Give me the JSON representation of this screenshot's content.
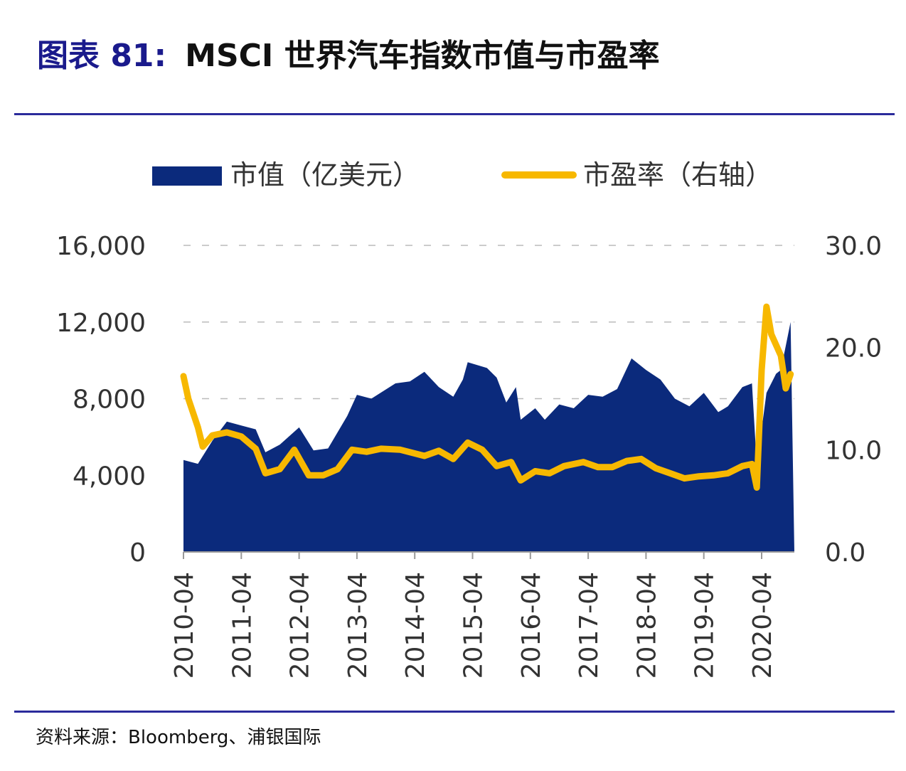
{
  "title": {
    "lead": "图表 81:",
    "text": "MSCI 世界汽车指数市值与市盈率"
  },
  "source": "资料来源：Bloomberg、浦银国际",
  "colors": {
    "market_cap": "#0b2a7c",
    "pe": "#f7b800",
    "rule": "#2b2b9b"
  },
  "chart_data": {
    "type": "area+line",
    "title": "",
    "legend_placement": "top",
    "grid": true,
    "x_tick_labels": [
      "2010-04",
      "2011-04",
      "2012-04",
      "2013-04",
      "2014-04",
      "2015-04",
      "2016-04",
      "2017-04",
      "2018-04",
      "2019-04",
      "2020-04"
    ],
    "y_left": {
      "ticks": [
        "0",
        "4,000",
        "8,000",
        "12,000",
        "16,000"
      ],
      "ylim": [
        0,
        16000
      ]
    },
    "y_right": {
      "ticks": [
        "0.0",
        "10.0",
        "20.0",
        "30.0"
      ],
      "ylim": [
        0,
        30
      ]
    },
    "series": [
      {
        "name": "市值（亿美元）",
        "type": "area",
        "axis": "left",
        "x": [
          "2010-04",
          "2010-07",
          "2010-10",
          "2011-01",
          "2011-04",
          "2011-07",
          "2011-09",
          "2011-12",
          "2012-04",
          "2012-07",
          "2012-10",
          "2013-02",
          "2013-04",
          "2013-07",
          "2013-12",
          "2014-03",
          "2014-06",
          "2014-09",
          "2014-12",
          "2015-02",
          "2015-03",
          "2015-07",
          "2015-09",
          "2015-11",
          "2016-01",
          "2016-02",
          "2016-05",
          "2016-07",
          "2016-10",
          "2017-01",
          "2017-04",
          "2017-07",
          "2017-10",
          "2018-01",
          "2018-04",
          "2018-07",
          "2018-10",
          "2019-01",
          "2019-04",
          "2019-07",
          "2019-09",
          "2019-12",
          "2020-02",
          "2020-03",
          "2020-05",
          "2020-07",
          "2020-08",
          "2020-10"
        ],
        "values": [
          4800,
          4600,
          5800,
          6800,
          6600,
          6400,
          5200,
          5600,
          6500,
          5300,
          5400,
          7100,
          8200,
          8000,
          8800,
          8900,
          9400,
          8600,
          8100,
          9000,
          9900,
          9600,
          9100,
          7800,
          8600,
          6900,
          7500,
          6900,
          7700,
          7500,
          8200,
          8100,
          8500,
          10100,
          9500,
          9000,
          8000,
          7600,
          8300,
          7300,
          7600,
          8600,
          8800,
          4500,
          8300,
          9300,
          9500,
          12000
        ]
      },
      {
        "name": "市盈率（右轴）",
        "type": "line",
        "axis": "right",
        "x": [
          "2010-04",
          "2010-05",
          "2010-07",
          "2010-08",
          "2010-10",
          "2011-01",
          "2011-04",
          "2011-07",
          "2011-09",
          "2011-12",
          "2012-03",
          "2012-06",
          "2012-09",
          "2012-12",
          "2013-03",
          "2013-06",
          "2013-09",
          "2014-01",
          "2014-06",
          "2014-09",
          "2014-12",
          "2015-03",
          "2015-06",
          "2015-09",
          "2015-12",
          "2016-02",
          "2016-05",
          "2016-08",
          "2016-11",
          "2017-03",
          "2017-06",
          "2017-09",
          "2017-12",
          "2018-03",
          "2018-06",
          "2018-09",
          "2018-12",
          "2019-03",
          "2019-06",
          "2019-09",
          "2019-12",
          "2020-02",
          "2020-03",
          "2020-04",
          "2020-05",
          "2020-06",
          "2020-08",
          "2020-09",
          "2020-10"
        ],
        "values": [
          17.2,
          15,
          12.2,
          10.3,
          11.4,
          11.7,
          11.3,
          10.1,
          7.7,
          8.1,
          10,
          7.5,
          7.5,
          8.1,
          10,
          9.8,
          10.1,
          10,
          9.4,
          9.9,
          9.1,
          10.7,
          10,
          8.4,
          8.8,
          7,
          7.9,
          7.7,
          8.4,
          8.8,
          8.3,
          8.3,
          8.9,
          9.1,
          8.2,
          7.7,
          7.2,
          7.4,
          7.5,
          7.7,
          8.4,
          8.6,
          6.3,
          17.8,
          24,
          21.3,
          19.2,
          16,
          17.4
        ]
      }
    ]
  }
}
